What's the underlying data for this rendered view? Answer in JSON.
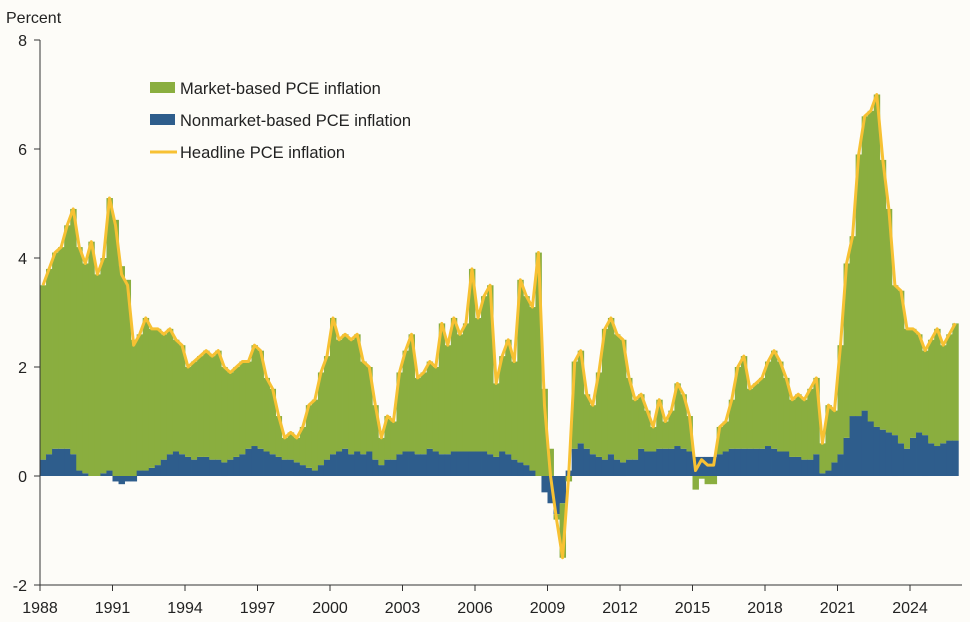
{
  "chart_data": {
    "type": "bar",
    "ylabel": "Percent",
    "ylim": [
      -2,
      8
    ],
    "yticks": [
      "-2",
      "0",
      "2",
      "4",
      "6",
      "8"
    ],
    "xlim": [
      1988,
      2026.1
    ],
    "xticks": [
      "1988",
      "1991",
      "1994",
      "1997",
      "2000",
      "2003",
      "2006",
      "2009",
      "2012",
      "2015",
      "2018",
      "2021",
      "2024"
    ],
    "grid": false,
    "legend_placement": "top-left",
    "frequency": "quarterly",
    "start_year": 1988,
    "colors": {
      "market": "#8aae3f",
      "nonmarket": "#2e5d8c",
      "headline": "#f7c133",
      "background": "#fdfcf8"
    },
    "series": [
      {
        "name": "Market-based PCE inflation",
        "kind": "stacked-bar",
        "values": [
          3.2,
          3.4,
          3.6,
          3.7,
          4.1,
          4.5,
          4.1,
          3.85,
          4.3,
          3.7,
          3.95,
          5.0,
          4.7,
          3.85,
          3.6,
          2.5,
          2.5,
          2.8,
          2.55,
          2.5,
          2.3,
          2.3,
          2.05,
          2.0,
          1.65,
          1.8,
          1.85,
          1.95,
          1.9,
          2.0,
          1.75,
          1.6,
          1.65,
          1.7,
          1.6,
          1.85,
          1.8,
          1.35,
          1.2,
          0.75,
          0.4,
          0.5,
          0.45,
          0.7,
          1.15,
          1.3,
          1.7,
          1.9,
          2.5,
          2.05,
          2.1,
          2.1,
          2.15,
          1.7,
          1.55,
          1.0,
          0.5,
          0.8,
          0.7,
          1.5,
          1.85,
          2.15,
          1.4,
          1.5,
          1.6,
          1.55,
          2.4,
          2.0,
          2.45,
          2.15,
          2.35,
          3.35,
          2.45,
          2.85,
          3.1,
          1.35,
          1.75,
          2.1,
          1.8,
          3.35,
          3.1,
          3.0,
          4.1,
          1.6,
          0.5,
          -0.1,
          -1.0,
          -0.1,
          1.6,
          1.7,
          1.0,
          0.9,
          1.55,
          2.4,
          2.5,
          2.3,
          2.25,
          1.5,
          1.1,
          1.0,
          0.75,
          0.45,
          0.9,
          0.5,
          0.7,
          1.15,
          1.0,
          0.65,
          -0.25,
          -0.05,
          -0.15,
          -0.15,
          0.5,
          0.55,
          0.9,
          1.5,
          1.7,
          1.1,
          1.2,
          1.3,
          1.55,
          1.8,
          1.65,
          1.35,
          1.05,
          1.15,
          1.1,
          1.3,
          1.4,
          0.55,
          1.2,
          0.95,
          2.0,
          3.2,
          3.3,
          4.8,
          5.4,
          5.7,
          6.1,
          4.95,
          4.1,
          2.75,
          2.8,
          2.2,
          2.0,
          1.8,
          1.55,
          1.9,
          2.15,
          1.8,
          1.95,
          2.15
        ]
      },
      {
        "name": "Nonmarket-based PCE inflation",
        "kind": "stacked-bar",
        "values": [
          0.3,
          0.4,
          0.5,
          0.5,
          0.5,
          0.4,
          0.1,
          0.05,
          0.0,
          0.0,
          0.05,
          0.1,
          -0.1,
          -0.15,
          -0.1,
          -0.1,
          0.1,
          0.1,
          0.15,
          0.2,
          0.3,
          0.4,
          0.45,
          0.4,
          0.35,
          0.3,
          0.35,
          0.35,
          0.3,
          0.3,
          0.25,
          0.3,
          0.35,
          0.4,
          0.5,
          0.55,
          0.5,
          0.45,
          0.4,
          0.35,
          0.3,
          0.3,
          0.25,
          0.2,
          0.15,
          0.1,
          0.2,
          0.3,
          0.4,
          0.45,
          0.5,
          0.4,
          0.45,
          0.4,
          0.45,
          0.3,
          0.2,
          0.3,
          0.3,
          0.4,
          0.45,
          0.45,
          0.4,
          0.4,
          0.5,
          0.45,
          0.4,
          0.4,
          0.45,
          0.45,
          0.45,
          0.45,
          0.45,
          0.45,
          0.4,
          0.35,
          0.45,
          0.4,
          0.3,
          0.25,
          0.2,
          0.1,
          0.0,
          -0.3,
          -0.5,
          -0.7,
          -0.5,
          0.1,
          0.5,
          0.6,
          0.5,
          0.4,
          0.35,
          0.3,
          0.4,
          0.3,
          0.25,
          0.3,
          0.3,
          0.5,
          0.45,
          0.45,
          0.5,
          0.5,
          0.5,
          0.55,
          0.5,
          0.45,
          0.35,
          0.35,
          0.35,
          0.35,
          0.4,
          0.45,
          0.5,
          0.5,
          0.5,
          0.5,
          0.5,
          0.5,
          0.55,
          0.5,
          0.45,
          0.45,
          0.35,
          0.35,
          0.3,
          0.3,
          0.4,
          0.05,
          0.1,
          0.25,
          0.4,
          0.7,
          1.1,
          1.1,
          1.2,
          1.0,
          0.9,
          0.85,
          0.8,
          0.75,
          0.6,
          0.5,
          0.7,
          0.8,
          0.75,
          0.6,
          0.55,
          0.6,
          0.65,
          0.65
        ]
      },
      {
        "name": "Headline PCE inflation",
        "kind": "line",
        "values": [
          3.5,
          3.8,
          4.1,
          4.2,
          4.6,
          4.9,
          4.2,
          3.9,
          4.3,
          3.7,
          4.0,
          5.1,
          4.6,
          3.7,
          3.5,
          2.4,
          2.6,
          2.9,
          2.7,
          2.7,
          2.6,
          2.7,
          2.5,
          2.4,
          2.0,
          2.1,
          2.2,
          2.3,
          2.2,
          2.3,
          2.0,
          1.9,
          2.0,
          2.1,
          2.1,
          2.4,
          2.3,
          1.8,
          1.6,
          1.1,
          0.7,
          0.8,
          0.7,
          0.9,
          1.3,
          1.4,
          1.9,
          2.2,
          2.9,
          2.5,
          2.6,
          2.5,
          2.6,
          2.1,
          2.0,
          1.3,
          0.7,
          1.1,
          1.0,
          1.9,
          2.3,
          2.6,
          1.8,
          1.9,
          2.1,
          2.0,
          2.8,
          2.4,
          2.9,
          2.6,
          2.8,
          3.8,
          2.9,
          3.3,
          3.5,
          1.7,
          2.2,
          2.5,
          2.1,
          3.6,
          3.3,
          3.1,
          4.1,
          1.3,
          0.0,
          -0.8,
          -1.5,
          0.0,
          2.1,
          2.3,
          1.5,
          1.3,
          1.9,
          2.7,
          2.9,
          2.6,
          2.5,
          1.8,
          1.4,
          1.5,
          1.2,
          0.9,
          1.4,
          1.0,
          1.2,
          1.7,
          1.5,
          1.1,
          0.1,
          0.3,
          0.2,
          0.2,
          0.9,
          1.0,
          1.4,
          2.0,
          2.2,
          1.6,
          1.7,
          1.8,
          2.1,
          2.3,
          2.1,
          1.8,
          1.4,
          1.5,
          1.4,
          1.6,
          1.8,
          0.6,
          1.3,
          1.2,
          2.4,
          3.9,
          4.4,
          5.9,
          6.6,
          6.7,
          7.0,
          5.8,
          4.9,
          3.5,
          3.4,
          2.7,
          2.7,
          2.6,
          2.3,
          2.5,
          2.7,
          2.4,
          2.6,
          2.8
        ]
      }
    ]
  }
}
